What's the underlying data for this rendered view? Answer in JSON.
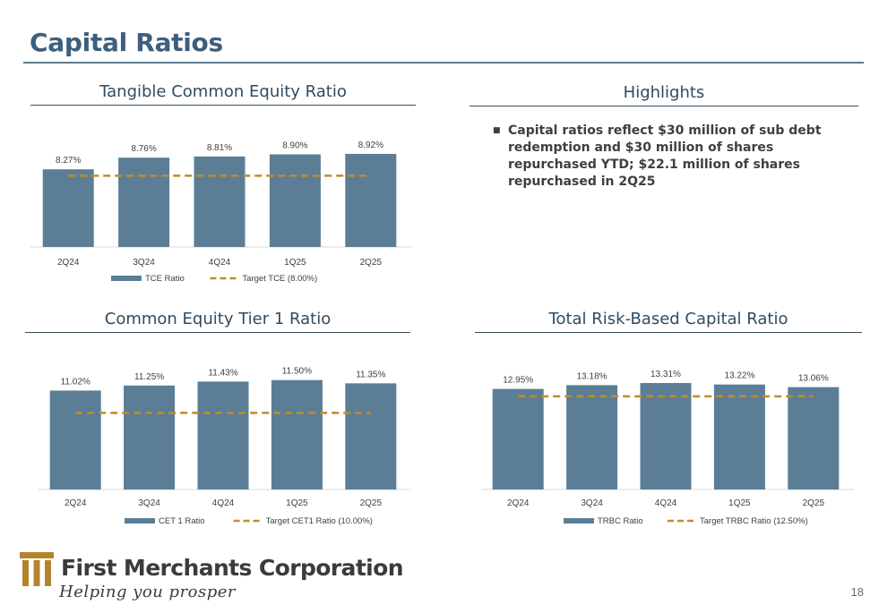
{
  "page": {
    "title": "Capital Ratios",
    "page_number": "18"
  },
  "highlights": {
    "title": "Highlights",
    "items": [
      "Capital ratios reflect $30 million of sub debt redemption and $30 million of shares repurchased YTD; $22.1 million of shares repurchased in 2Q25"
    ]
  },
  "logo": {
    "name": "First Merchants Corporation",
    "tagline": "Helping you prosper"
  },
  "colors": {
    "bar": "#5b7e96",
    "target": "#bf8c2c",
    "title": "#3c5f7d"
  },
  "chart_data": [
    {
      "type": "bar",
      "title": "Tangible Common Equity Ratio",
      "categories": [
        "2Q24",
        "3Q24",
        "4Q24",
        "1Q25",
        "2Q25"
      ],
      "values": [
        8.27,
        8.76,
        8.81,
        8.9,
        8.92
      ],
      "labels": [
        "8.27%",
        "8.76%",
        "8.81%",
        "8.90%",
        "8.92%"
      ],
      "series_name": "TCE Ratio",
      "target": {
        "name": "Target TCE (8.00%)",
        "value": 8.0
      },
      "legend": "bottom"
    },
    {
      "type": "bar",
      "title": "Common Equity Tier 1 Ratio",
      "categories": [
        "2Q24",
        "3Q24",
        "4Q24",
        "1Q25",
        "2Q25"
      ],
      "values": [
        11.02,
        11.25,
        11.43,
        11.5,
        11.35
      ],
      "labels": [
        "11.02%",
        "11.25%",
        "11.43%",
        "11.50%",
        "11.35%"
      ],
      "series_name": "CET 1 Ratio",
      "target": {
        "name": "Target CET1 Ratio (10.00%)",
        "value": 10.0
      },
      "legend": "bottom"
    },
    {
      "type": "bar",
      "title": "Total Risk-Based Capital Ratio",
      "categories": [
        "2Q24",
        "3Q24",
        "4Q24",
        "1Q25",
        "2Q25"
      ],
      "values": [
        12.95,
        13.18,
        13.31,
        13.22,
        13.06
      ],
      "labels": [
        "12.95%",
        "13.18%",
        "13.31%",
        "13.22%",
        "13.06%"
      ],
      "series_name": "TRBC Ratio",
      "target": {
        "name": "Target TRBC Ratio (12.50%)",
        "value": 12.5
      },
      "legend": "bottom"
    }
  ]
}
